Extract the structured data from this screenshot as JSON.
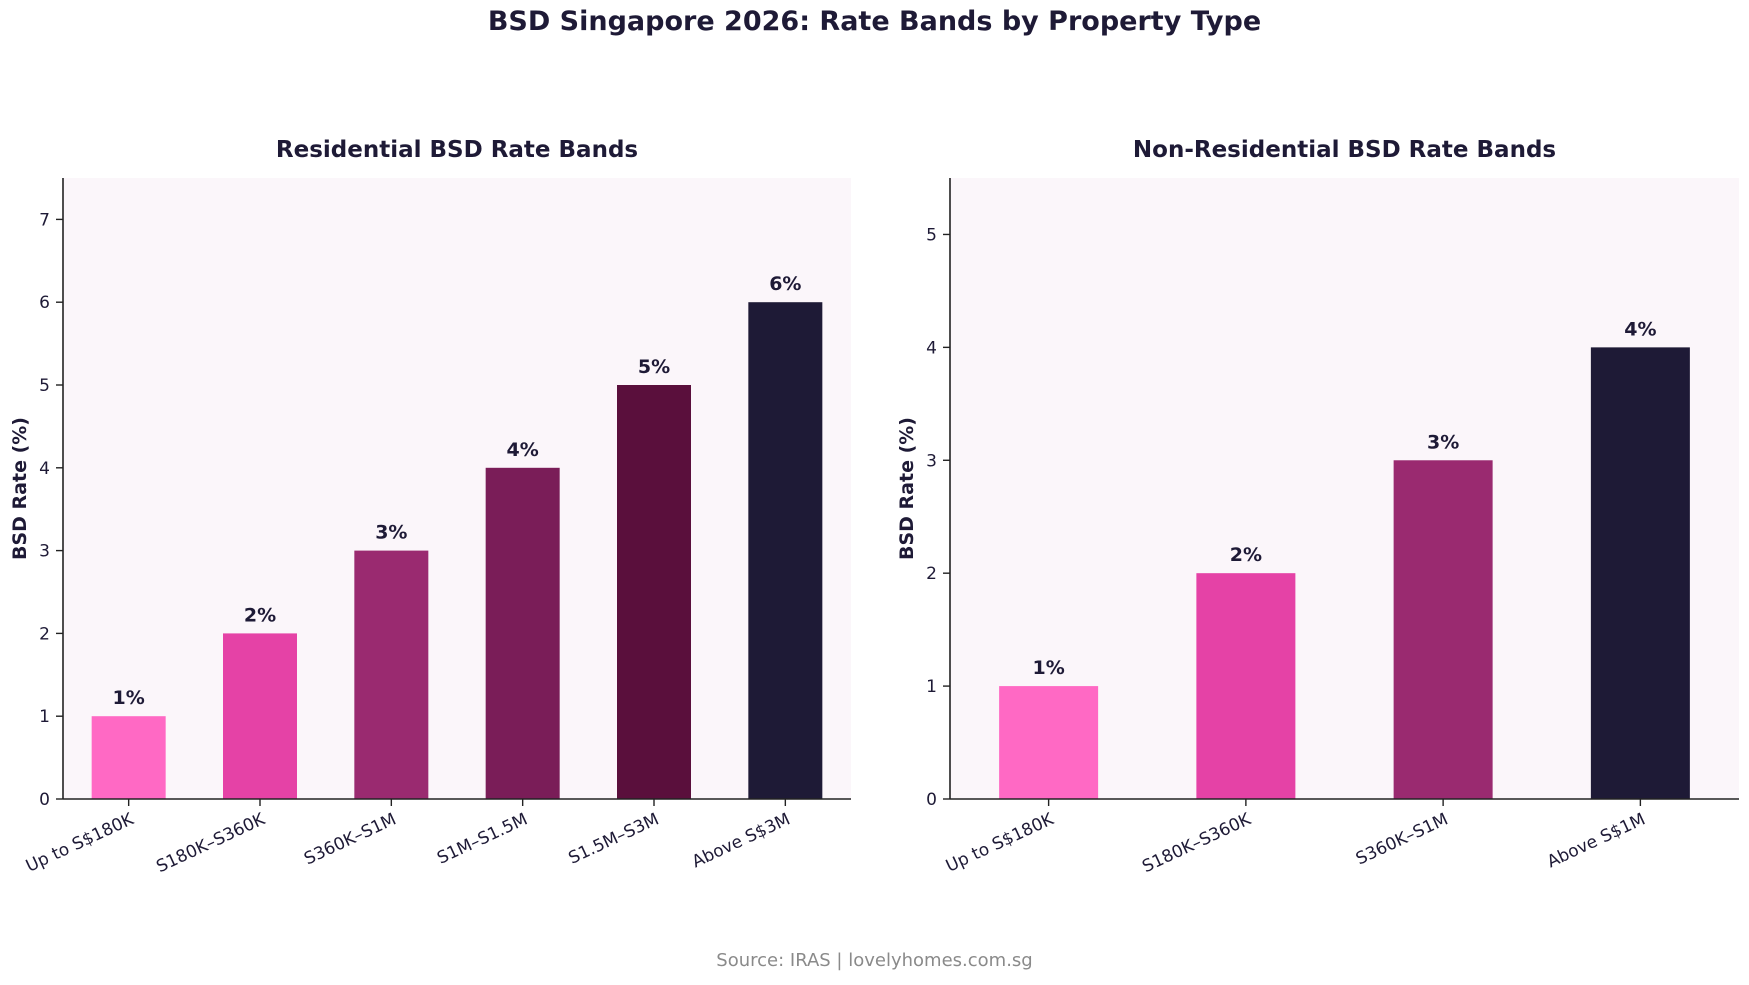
{
  "title": "BSD Singapore 2026: Rate Bands by Property Type",
  "source": "Source: IRAS | lovelyhomes.com.sg",
  "chart_data": [
    {
      "type": "bar",
      "title": "Residential BSD Rate Bands",
      "ylabel": "BSD Rate (%)",
      "xlabel": "",
      "ylim": [
        0,
        7.5
      ],
      "yticks": [
        0,
        1,
        2,
        3,
        4,
        5,
        6,
        7
      ],
      "categories": [
        "Up to S$180K",
        "S180K–S360K",
        "S360K–S1M",
        "S1M–S1.5M",
        "S1.5M–S3M",
        "Above S$3M"
      ],
      "values": [
        1,
        2,
        3,
        4,
        5,
        6
      ],
      "data_labels": [
        "1%",
        "2%",
        "3%",
        "4%",
        "5%",
        "6%"
      ],
      "colors": [
        "#ff69c4",
        "#e542a6",
        "#9a2a70",
        "#7a1d58",
        "#5a0f3c",
        "#1e1a36"
      ],
      "grid": false
    },
    {
      "type": "bar",
      "title": "Non-Residential BSD Rate Bands",
      "ylabel": "BSD Rate (%)",
      "xlabel": "",
      "ylim": [
        0,
        5.5
      ],
      "yticks": [
        0,
        1,
        2,
        3,
        4,
        5
      ],
      "categories": [
        "Up to S$180K",
        "S180K–S360K",
        "S360K–S1M",
        "Above S$1M"
      ],
      "values": [
        1,
        2,
        3,
        4
      ],
      "data_labels": [
        "1%",
        "2%",
        "3%",
        "4%"
      ],
      "colors": [
        "#ff69c4",
        "#e542a6",
        "#9a2a70",
        "#1e1a36"
      ],
      "grid": false
    }
  ]
}
